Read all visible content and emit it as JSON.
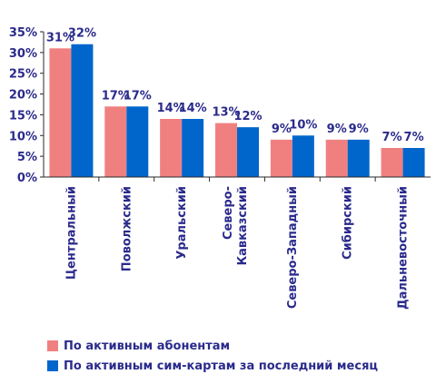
{
  "chart_data": {
    "type": "bar",
    "categories": [
      "Центральный",
      "Поволжский",
      "Уральский",
      "Северо-Кавказский",
      "Северо-Западный",
      "Сибирский",
      "Дальневосточный"
    ],
    "category_lines": [
      [
        "Центральный"
      ],
      [
        "Поволжский"
      ],
      [
        "Уральский"
      ],
      [
        "Северо-",
        "Кавказский"
      ],
      [
        "Северо-Западный"
      ],
      [
        "Сибирский"
      ],
      [
        "Дальневосточный"
      ]
    ],
    "series": [
      {
        "name": "По активным абонентам",
        "values": [
          31,
          17,
          14,
          13,
          9,
          9,
          7
        ],
        "labels": [
          "31%",
          "17%",
          "14%",
          "13%",
          "9%",
          "9%",
          "7%"
        ],
        "color": "#f08080"
      },
      {
        "name": "По активным сим-картам за последний месяц",
        "values": [
          32,
          17,
          14,
          12,
          10,
          9,
          7
        ],
        "labels": [
          "32%",
          "17%",
          "14%",
          "12%",
          "10%",
          "9%",
          "7%"
        ],
        "color": "#0066cc"
      }
    ],
    "ylim": [
      0,
      35
    ],
    "yticks": [
      "0%",
      "5%",
      "10%",
      "15%",
      "20%",
      "25%",
      "30%",
      "35%"
    ],
    "grid": false,
    "legend_position": "bottom"
  }
}
